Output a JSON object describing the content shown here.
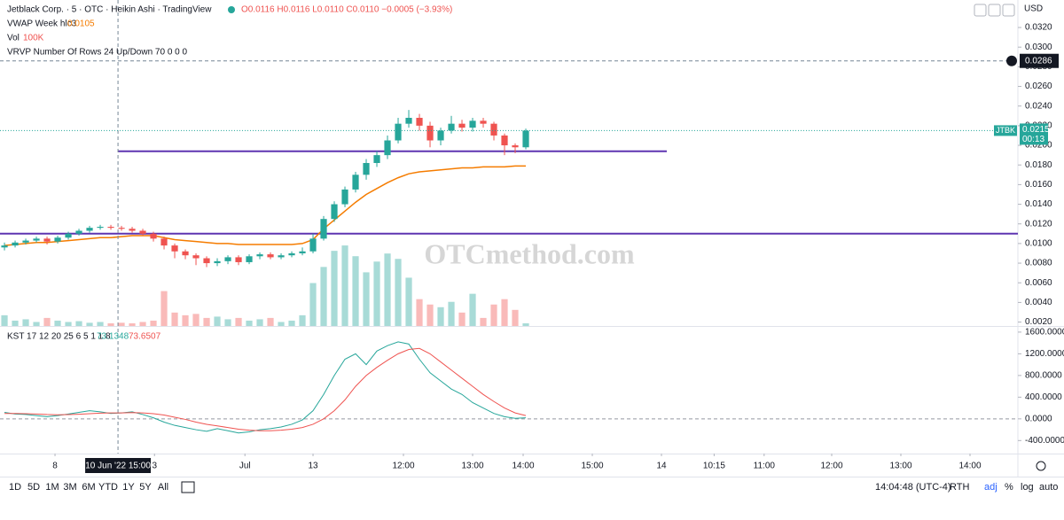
{
  "chart_data": [
    {
      "type": "candlestick",
      "title": "Jetblack Corp. · 5 · OTC · Heikin Ashi · TradingView",
      "ohlc_legend": "O0.0116 H0.0116 L0.0110 C0.0110 −0.0005 (−3.93%)",
      "currency": "USD",
      "watermark": "OTCmethod.com",
      "up_color": "#26a69a",
      "down_color": "#ef5350",
      "xlim": [
        -0.42,
        95.25
      ],
      "xticks": [
        {
          "value": 4.75,
          "label": "8"
        },
        {
          "value": 14.1,
          "label": "3"
        },
        {
          "value": 22.6,
          "label": "Jul"
        },
        {
          "value": 29,
          "label": "13"
        },
        {
          "value": 37.5,
          "label": "12:00"
        },
        {
          "value": 44,
          "label": "13:00"
        },
        {
          "value": 48.75,
          "label": "14:00"
        },
        {
          "value": 55.25,
          "label": "15:00"
        },
        {
          "value": 61.75,
          "label": "14"
        },
        {
          "value": 66.7,
          "label": "10:15"
        },
        {
          "value": 71.4,
          "label": "11:00"
        },
        {
          "value": 77.75,
          "label": "12:00"
        },
        {
          "value": 84.25,
          "label": "13:00"
        },
        {
          "value": 90.75,
          "label": "14:00"
        }
      ],
      "ylim": [
        0.0016,
        0.0348
      ],
      "yticks": [
        {
          "value": 0.002,
          "label": "0.0020"
        },
        {
          "value": 0.004,
          "label": "0.0040"
        },
        {
          "value": 0.006,
          "label": "0.0060"
        },
        {
          "value": 0.008,
          "label": "0.0080"
        },
        {
          "value": 0.01,
          "label": "0.0100"
        },
        {
          "value": 0.012,
          "label": "0.0120"
        },
        {
          "value": 0.014,
          "label": "0.0140"
        },
        {
          "value": 0.016,
          "label": "0.0160"
        },
        {
          "value": 0.018,
          "label": "0.0180"
        },
        {
          "value": 0.02,
          "label": "0.0200"
        },
        {
          "value": 0.022,
          "label": "0.0220"
        },
        {
          "value": 0.024,
          "label": "0.0240"
        },
        {
          "value": 0.026,
          "label": "0.0260"
        },
        {
          "value": 0.028,
          "label": "0.0280"
        },
        {
          "value": 0.03,
          "label": "0.0300"
        },
        {
          "value": 0.032,
          "label": "0.0320"
        }
      ],
      "open": [
        0.0096,
        0.0098,
        0.0101,
        0.0103,
        0.0105,
        0.0102,
        0.0106,
        0.011,
        0.0113,
        0.0116,
        0.0117,
        0.0116,
        0.0115,
        0.0113,
        0.011,
        0.0105,
        0.0098,
        0.0092,
        0.0088,
        0.0085,
        0.008,
        0.0082,
        0.0086,
        0.0081,
        0.0087,
        0.0089,
        0.0086,
        0.0088,
        0.009,
        0.0092,
        0.0105,
        0.0125,
        0.014,
        0.0155,
        0.017,
        0.0182,
        0.019,
        0.0205,
        0.0222,
        0.0228,
        0.022,
        0.0205,
        0.0215,
        0.0222,
        0.0218,
        0.0225,
        0.0222,
        0.021,
        0.02,
        0.0198
      ],
      "high": [
        0.0101,
        0.0103,
        0.0105,
        0.0107,
        0.0107,
        0.0108,
        0.0112,
        0.0115,
        0.0118,
        0.0119,
        0.0119,
        0.0118,
        0.0117,
        0.0115,
        0.0112,
        0.0107,
        0.01,
        0.0094,
        0.009,
        0.0087,
        0.0085,
        0.0088,
        0.0088,
        0.0089,
        0.0091,
        0.0091,
        0.009,
        0.0092,
        0.0096,
        0.011,
        0.0128,
        0.0143,
        0.0158,
        0.0173,
        0.0186,
        0.0194,
        0.021,
        0.0228,
        0.0236,
        0.0232,
        0.0224,
        0.0218,
        0.023,
        0.0226,
        0.0228,
        0.0228,
        0.0224,
        0.0212,
        0.0202,
        0.0217
      ],
      "low": [
        0.0093,
        0.0096,
        0.0099,
        0.0101,
        0.0099,
        0.01,
        0.0104,
        0.0108,
        0.0111,
        0.0114,
        0.0114,
        0.0113,
        0.0111,
        0.0108,
        0.0102,
        0.0094,
        0.0085,
        0.0084,
        0.0078,
        0.0076,
        0.0077,
        0.0079,
        0.0078,
        0.0079,
        0.0084,
        0.0084,
        0.0084,
        0.0086,
        0.0088,
        0.009,
        0.0103,
        0.0122,
        0.0137,
        0.0152,
        0.0165,
        0.0178,
        0.0186,
        0.0202,
        0.0218,
        0.0215,
        0.0198,
        0.02,
        0.0212,
        0.0214,
        0.0214,
        0.0218,
        0.0205,
        0.019,
        0.0192,
        0.0196
      ],
      "close": [
        0.0098,
        0.0101,
        0.0103,
        0.0105,
        0.0102,
        0.0106,
        0.011,
        0.0113,
        0.0116,
        0.0117,
        0.0116,
        0.0115,
        0.0113,
        0.011,
        0.0105,
        0.0098,
        0.0092,
        0.0088,
        0.0085,
        0.008,
        0.0082,
        0.0086,
        0.0081,
        0.0087,
        0.0089,
        0.0086,
        0.0088,
        0.009,
        0.0092,
        0.0105,
        0.0125,
        0.014,
        0.0155,
        0.017,
        0.0182,
        0.019,
        0.0205,
        0.0222,
        0.0228,
        0.022,
        0.0205,
        0.0215,
        0.0222,
        0.0218,
        0.0225,
        0.0222,
        0.021,
        0.02,
        0.0198,
        0.0215
      ],
      "series": [
        {
          "name": "VWAP Week hlc3",
          "legend_value": "0.0105",
          "color": "#f57c00",
          "values": [
            0.0098,
            0.0099,
            0.01,
            0.0101,
            0.0101,
            0.0102,
            0.0103,
            0.0104,
            0.0105,
            0.0106,
            0.0106,
            0.0107,
            0.0108,
            0.0108,
            0.0108,
            0.0106,
            0.0104,
            0.0103,
            0.0102,
            0.0101,
            0.01,
            0.01,
            0.0099,
            0.0099,
            0.0099,
            0.0099,
            0.0099,
            0.0099,
            0.01,
            0.0104,
            0.0115,
            0.0124,
            0.0133,
            0.0142,
            0.015,
            0.0156,
            0.0162,
            0.0167,
            0.0171,
            0.0173,
            0.0174,
            0.0175,
            0.0176,
            0.0177,
            0.0177,
            0.0178,
            0.0178,
            0.0178,
            0.0179,
            0.0179
          ]
        }
      ],
      "volume": {
        "name": "Vol",
        "legend_value": "100K",
        "vlim": [
          0,
          3300000
        ],
        "values": [
          400000,
          200000,
          250000,
          150000,
          300000,
          200000,
          150000,
          180000,
          120000,
          150000,
          100000,
          120000,
          100000,
          150000,
          200000,
          1300000,
          500000,
          400000,
          450000,
          300000,
          350000,
          250000,
          300000,
          200000,
          250000,
          300000,
          150000,
          200000,
          400000,
          1600000,
          2200000,
          2800000,
          3000000,
          2600000,
          2000000,
          2400000,
          2700000,
          2500000,
          1800000,
          1000000,
          800000,
          700000,
          900000,
          500000,
          1200000,
          300000,
          800000,
          1000000,
          600000,
          100000
        ]
      },
      "vrvp": "VRVP Number Of Rows 24 Up/Down 70  0 0 0",
      "hlines": [
        {
          "value": 0.0194,
          "color": "#5e35b1"
        },
        {
          "value": 0.011,
          "color": "#5e35b1"
        }
      ],
      "crosshair": {
        "price": {
          "value": 0.0286,
          "label": "0.0286"
        },
        "time": {
          "value": 10.67,
          "label": "10 Jun '22 15:00"
        }
      },
      "last": {
        "symbol": "JTBK",
        "price": {
          "value": 0.0215,
          "label": "0.0215"
        },
        "countdown": "00:13"
      }
    },
    {
      "type": "line",
      "title": "KST 17 12 20 25 6 5 1 1 8",
      "ylim": [
        -640,
        1680
      ],
      "yticks": [
        {
          "value": -400,
          "label": "-400.0000"
        },
        {
          "value": 0,
          "label": "0.0000"
        },
        {
          "value": 400,
          "label": "400.0000"
        },
        {
          "value": 800,
          "label": "800.0000"
        },
        {
          "value": 1200,
          "label": "1200.0000"
        },
        {
          "value": 1600,
          "label": "1600.0000"
        }
      ],
      "series": [
        {
          "legend_value": "73.1348",
          "color": "#26a69a",
          "values": [
            120,
            90,
            80,
            60,
            40,
            60,
            90,
            120,
            150,
            130,
            100,
            110,
            130,
            80,
            20,
            -60,
            -120,
            -160,
            -200,
            -230,
            -180,
            -220,
            -260,
            -240,
            -200,
            -180,
            -150,
            -100,
            -20,
            150,
            450,
            800,
            1100,
            1200,
            1000,
            1250,
            1350,
            1420,
            1380,
            1100,
            850,
            700,
            550,
            450,
            300,
            200,
            100,
            40,
            10,
            20
          ]
        },
        {
          "legend_value": "73.6507",
          "color": "#ef5350",
          "values": [
            100,
            100,
            95,
            90,
            80,
            75,
            78,
            85,
            95,
            105,
            110,
            110,
            115,
            110,
            95,
            70,
            30,
            -10,
            -60,
            -100,
            -130,
            -160,
            -190,
            -210,
            -220,
            -220,
            -210,
            -190,
            -160,
            -100,
            0,
            150,
            350,
            600,
            800,
            950,
            1080,
            1200,
            1280,
            1300,
            1200,
            1050,
            900,
            750,
            600,
            450,
            320,
            200,
            110,
            60
          ]
        }
      ]
    }
  ],
  "toolbar": {
    "ranges": [
      "1D",
      "5D",
      "1M",
      "3M",
      "6M",
      "YTD",
      "1Y",
      "5Y",
      "All"
    ],
    "clock": "14:04:48 (UTC-4)",
    "session": "RTH",
    "adj": "adj",
    "percent": "%",
    "log": "log",
    "auto": "auto"
  }
}
